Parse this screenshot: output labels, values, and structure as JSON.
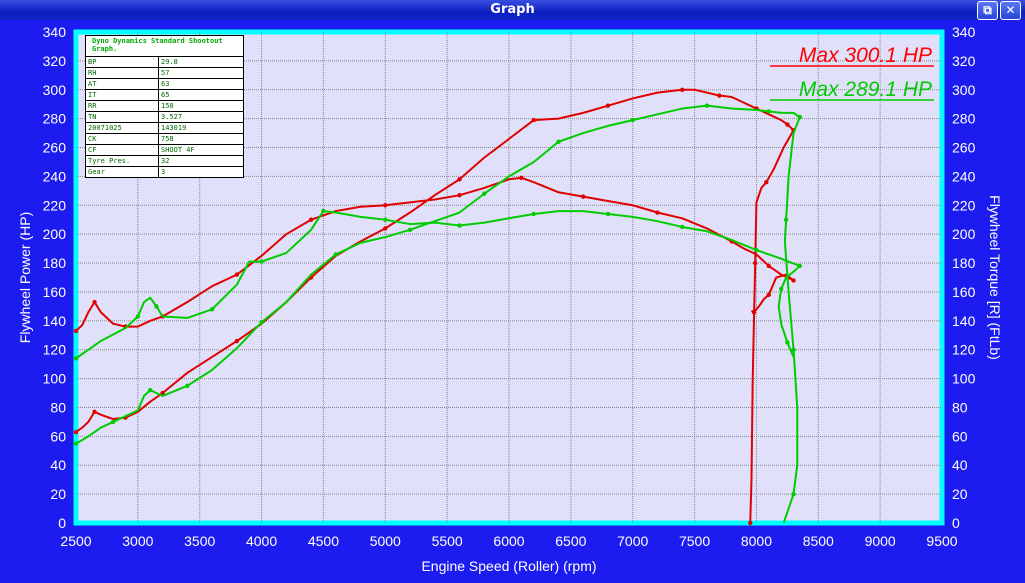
{
  "window": {
    "title": "Graph",
    "restore_glyph": "⧉",
    "close_glyph": "✕"
  },
  "info_box": {
    "header": "Dyno Dynamics Standard Shootout Graph.",
    "rows": [
      {
        "k": "BP",
        "v": "29.8"
      },
      {
        "k": "RH",
        "v": "57"
      },
      {
        "k": "AT",
        "v": "63"
      },
      {
        "k": "IT",
        "v": "65"
      },
      {
        "k": "RR",
        "v": "150"
      },
      {
        "k": "TN",
        "v": "3.527"
      },
      {
        "k": "20071025",
        "v": "143019"
      },
      {
        "k": "CK",
        "v": "758"
      },
      {
        "k": "CF",
        "v": "SHOOT 4F"
      },
      {
        "k": "Tyre Pres.",
        "v": "32"
      },
      {
        "k": "Gear",
        "v": "3"
      }
    ]
  },
  "chart_data": {
    "type": "line",
    "xlabel": "Engine Speed (Roller) (rpm)",
    "ylabel": "Flywheel Power (HP)",
    "y2label": "Flywheel Torque [R] (FtLb)",
    "xlim": [
      2500,
      9500
    ],
    "ylim": [
      0,
      340
    ],
    "x_ticks": [
      2500,
      3000,
      3500,
      4000,
      4500,
      5000,
      5500,
      6000,
      6500,
      7000,
      7500,
      8000,
      8500,
      9000,
      9500
    ],
    "y_ticks": [
      0,
      20,
      40,
      60,
      80,
      100,
      120,
      140,
      160,
      180,
      200,
      220,
      240,
      260,
      280,
      300,
      320,
      340
    ],
    "grid": true,
    "annotations": [
      {
        "text": "Max 300.1 HP",
        "color": "#ff0000"
      },
      {
        "text": "Max 289.1 HP",
        "color": "#00cc00"
      }
    ],
    "colors": {
      "run_red": "#e00000",
      "run_green": "#00cc00",
      "plot_bg": "#e0e0fa",
      "frame": "#00ffff",
      "window_bg": "#1c1cf0"
    },
    "series": [
      {
        "color": "#e00000",
        "kind": "power",
        "x": [
          2500,
          2550,
          2600,
          2650,
          2700,
          2800,
          2900,
          3000,
          3100,
          3200,
          3400,
          3600,
          3800,
          4000,
          4200,
          4400,
          4600,
          4800,
          5000,
          5200,
          5400,
          5600,
          5800,
          6000,
          6200,
          6400,
          6600,
          6800,
          7000,
          7200,
          7400,
          7500,
          7600,
          7700,
          7800,
          7900,
          8000,
          8100,
          8200,
          8250,
          8300
        ],
        "y": [
          63,
          66,
          70,
          77,
          75,
          72,
          73,
          77,
          84,
          90,
          104,
          115,
          126,
          138,
          153,
          170,
          185,
          195,
          204,
          215,
          227,
          238,
          253,
          266,
          279,
          280,
          284,
          289,
          294,
          298,
          300,
          300,
          298,
          296,
          295,
          291,
          287,
          283,
          279,
          276,
          272
        ]
      },
      {
        "color": "#e00000",
        "kind": "power-coastdown",
        "x": [
          8300,
          8220,
          8140,
          8080,
          8040,
          8000,
          7990,
          7970,
          7960,
          7950
        ],
        "y": [
          272,
          260,
          245,
          236,
          232,
          222,
          180,
          100,
          30,
          0
        ]
      },
      {
        "color": "#e00000",
        "kind": "torque",
        "x": [
          2500,
          2550,
          2600,
          2650,
          2700,
          2800,
          2900,
          3000,
          3100,
          3200,
          3400,
          3600,
          3800,
          4000,
          4200,
          4400,
          4600,
          4800,
          5000,
          5200,
          5400,
          5600,
          5800,
          6000,
          6100,
          6200,
          6400,
          6600,
          6800,
          7000,
          7200,
          7400,
          7600,
          7800,
          7900,
          8000,
          8100,
          8200,
          8300
        ],
        "y": [
          133,
          137,
          146,
          153,
          146,
          138,
          136,
          136,
          140,
          143,
          153,
          164,
          172,
          185,
          200,
          210,
          216,
          219,
          220,
          222,
          224,
          227,
          232,
          238,
          239,
          236,
          229,
          226,
          223,
          220,
          215,
          211,
          204,
          195,
          190,
          186,
          178,
          172,
          168
        ]
      },
      {
        "color": "#e00000",
        "kind": "torque-coastdown",
        "x": [
          8300,
          8240,
          8160,
          8100,
          8060,
          8020,
          7980,
          7960
        ],
        "y": [
          168,
          172,
          170,
          158,
          155,
          150,
          146,
          147
        ]
      },
      {
        "color": "#00cc00",
        "kind": "power",
        "x": [
          2500,
          2600,
          2700,
          2800,
          3000,
          3050,
          3100,
          3150,
          3200,
          3400,
          3600,
          3800,
          4000,
          4200,
          4400,
          4600,
          4800,
          5000,
          5200,
          5400,
          5600,
          5800,
          6000,
          6200,
          6400,
          6600,
          6800,
          7000,
          7200,
          7400,
          7600,
          7800,
          8000,
          8100,
          8200,
          8300,
          8350
        ],
        "y": [
          55,
          60,
          66,
          70,
          78,
          88,
          92,
          90,
          88,
          95,
          106,
          121,
          139,
          153,
          172,
          186,
          194,
          198,
          203,
          209,
          215,
          228,
          240,
          250,
          264,
          270,
          275,
          279,
          283,
          287,
          289,
          287,
          286,
          285,
          284,
          284,
          281
        ]
      },
      {
        "color": "#00cc00",
        "kind": "power-coastdown",
        "x": [
          8350,
          8300,
          8260,
          8240,
          8230,
          8260,
          8300,
          8330,
          8330,
          8300,
          8260,
          8220
        ],
        "y": [
          281,
          270,
          240,
          210,
          195,
          160,
          120,
          80,
          40,
          20,
          10,
          0
        ]
      },
      {
        "color": "#00cc00",
        "kind": "torque",
        "x": [
          2500,
          2700,
          2900,
          3000,
          3050,
          3100,
          3150,
          3200,
          3400,
          3600,
          3800,
          3900,
          4000,
          4200,
          4400,
          4500,
          4600,
          4800,
          5000,
          5200,
          5400,
          5600,
          5800,
          6000,
          6200,
          6400,
          6600,
          6800,
          7000,
          7200,
          7400,
          7600,
          7800,
          8000,
          8200,
          8350
        ],
        "y": [
          114,
          126,
          135,
          143,
          153,
          156,
          150,
          143,
          142,
          148,
          165,
          181,
          181,
          187,
          203,
          216,
          215,
          212,
          210,
          207,
          208,
          206,
          208,
          211,
          214,
          216,
          216,
          214,
          212,
          209,
          205,
          202,
          196,
          189,
          183,
          178
        ]
      },
      {
        "color": "#00cc00",
        "kind": "torque-coastdown",
        "x": [
          8350,
          8300,
          8240,
          8200,
          8180,
          8200,
          8250,
          8300
        ],
        "y": [
          178,
          174,
          170,
          162,
          150,
          138,
          125,
          115
        ]
      }
    ]
  }
}
